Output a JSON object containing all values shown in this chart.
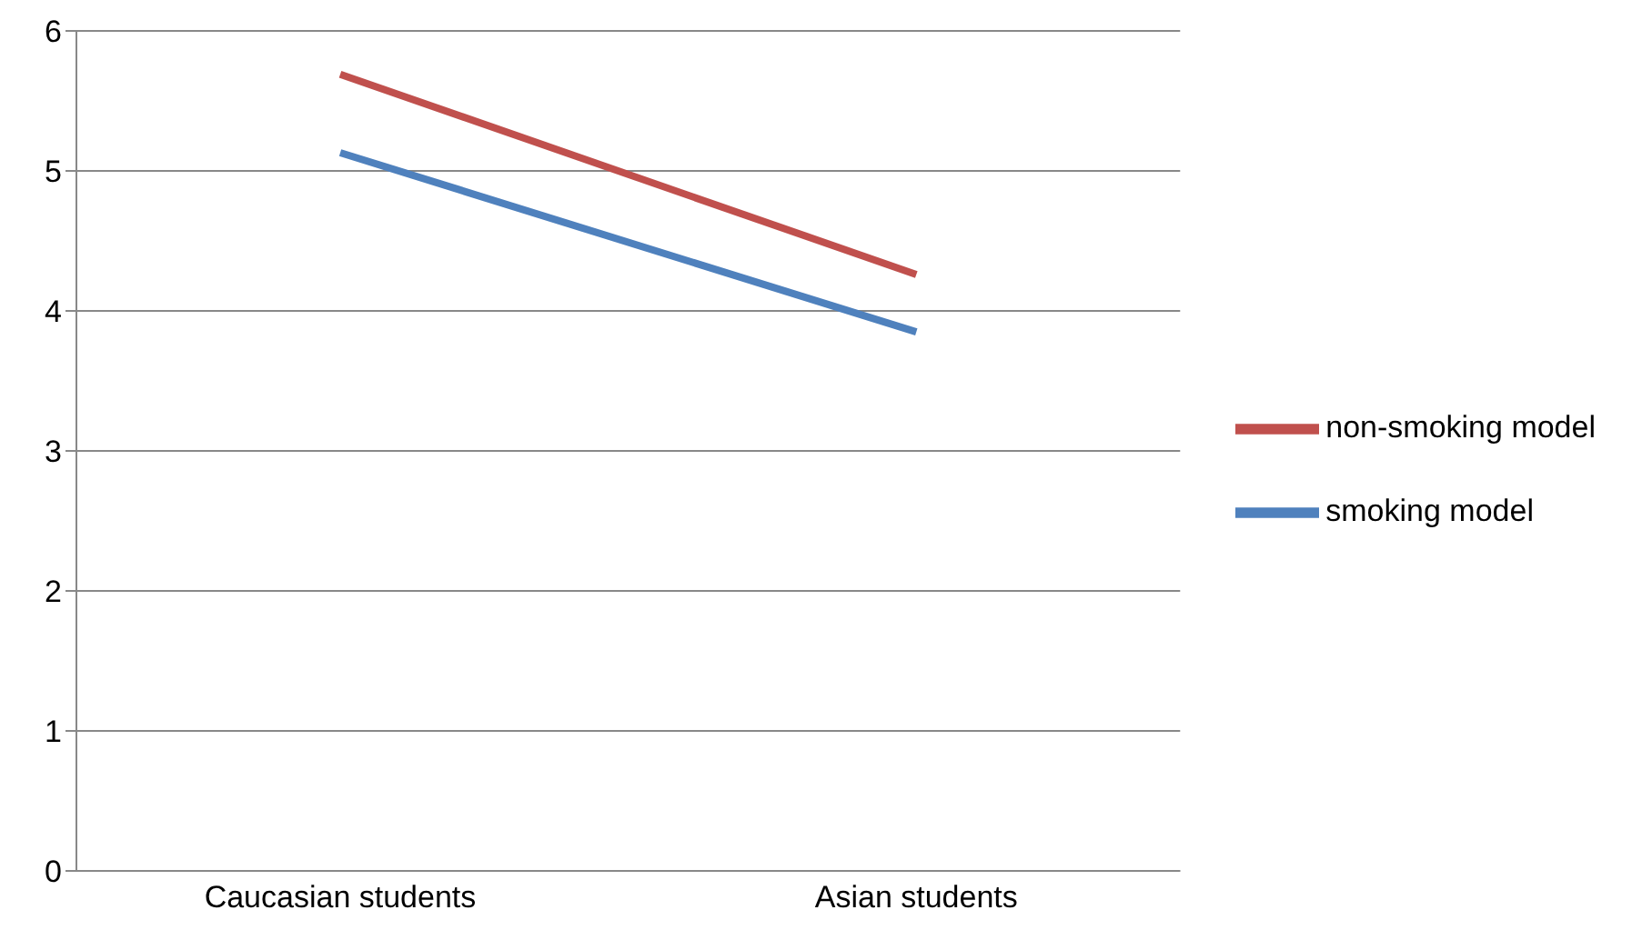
{
  "chart_data": {
    "type": "line",
    "categories": [
      "Caucasian students",
      "Asian students"
    ],
    "series": [
      {
        "name": "smoking model",
        "color": "#4f81bd",
        "values": [
          5.13,
          3.85
        ]
      },
      {
        "name": "non-smoking model",
        "color": "#c0504d",
        "values": [
          5.69,
          4.26
        ]
      }
    ],
    "ylim": [
      0,
      6
    ],
    "yticks": [
      0,
      1,
      2,
      3,
      4,
      5,
      6
    ],
    "grid": "y",
    "legend": "right",
    "marker": "none",
    "line_style": "solid"
  }
}
